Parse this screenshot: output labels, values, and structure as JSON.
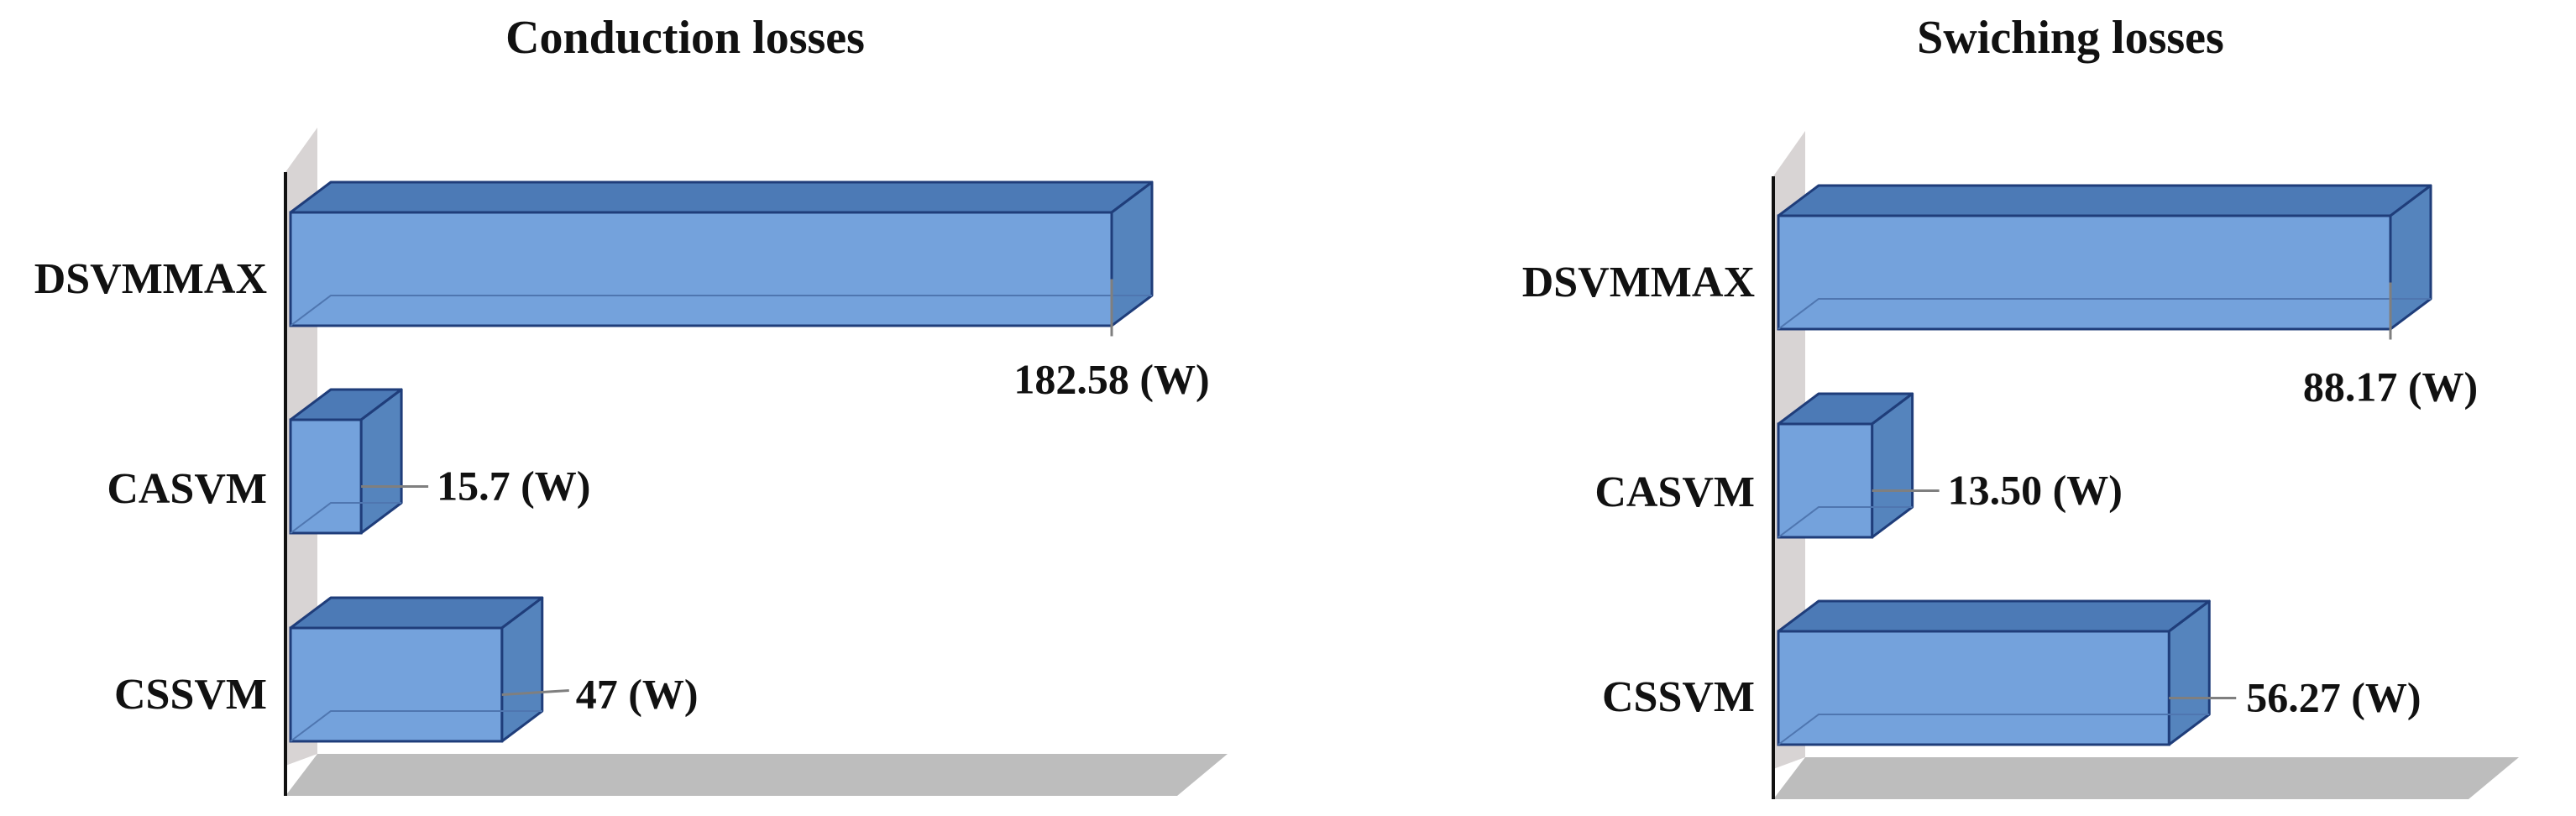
{
  "colors": {
    "bar_front": "#74a2dc",
    "bar_top": "#4c7ab6",
    "bar_side": "#5584bd",
    "bar_edge": "#1f3d7a",
    "wall": "#d8d4d4",
    "floor": "#bdbdbd",
    "leader": "#7f7f7f"
  },
  "chart_data": [
    {
      "type": "bar",
      "orientation": "horizontal",
      "three_d": true,
      "title": "Conduction losses",
      "categories": [
        "DSVMMAX",
        "CASVM",
        "CSSVM"
      ],
      "values": [
        182.58,
        15.7,
        47
      ],
      "data_labels": [
        "182.58 (W)",
        "15.7 (W)",
        "47 (W)"
      ],
      "grid": false,
      "legend": "none"
    },
    {
      "type": "bar",
      "orientation": "horizontal",
      "three_d": true,
      "title": "Swiching losses",
      "categories": [
        "DSVMMAX",
        "CASVM",
        "CSSVM"
      ],
      "values": [
        88.17,
        13.5,
        56.27
      ],
      "data_labels": [
        "88.17 (W)",
        "13.50 (W)",
        "56.27 (W)"
      ],
      "grid": false,
      "legend": "none"
    }
  ]
}
